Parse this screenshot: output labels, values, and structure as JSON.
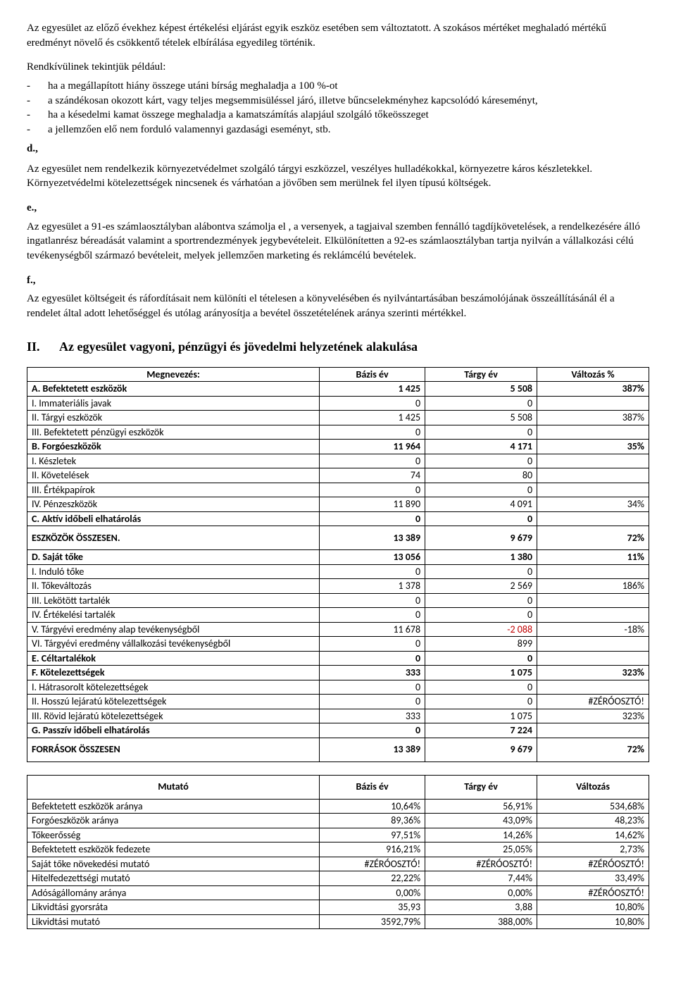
{
  "intro": {
    "p1": "Az egyesület az előző évekhez képest értékelési eljárást egyik eszköz esetében sem változtatott. A szokásos mértéket meghaladó mértékű eredményt növelő és csökkentő tételek elbírálása egyedileg történik.",
    "p2": "Rendkívülinek tekintjük például:",
    "bullets": [
      "ha a megállapított hiány összege utáni bírság meghaladja a 100 %-ot",
      "a szándékosan okozott kárt, vagy teljes megsemmisüléssel járó, illetve bűncselekményhez kapcsolódó káreseményt,",
      "ha a késedelmi kamat összege meghaladja a kamatszámítás alapjául szolgáló tőkeösszeget",
      "a jellemzően elő nem forduló valamennyi gazdasági eseményt, stb."
    ]
  },
  "d": {
    "label": "d.,",
    "p1": "Az egyesület nem rendelkezik környezetvédelmet szolgáló tárgyi eszközzel, veszélyes hulladékokkal, környezetre káros készletekkel. Környezetvédelmi kötelezettségek nincsenek és várhatóan a jövőben sem merülnek fel ilyen típusú költségek."
  },
  "e": {
    "label": "e.,",
    "p1": "Az egyesület a 91-es számlaosztályban alábontva számolja el , a versenyek,  a tagjaival szemben fennálló tagdíjkövetelések, a rendelkezésére álló ingatlanrész béreadását valamint a sportrendezmények jegybevételeit. Elkülönítetten a 92-es számlaosztályban tartja nyilván a vállalkozási célú tevékenységből származó bevételeit, melyek jellemzően marketing és reklámcélú bevételek."
  },
  "f": {
    "label": "f.,",
    "p1": "Az egyesület költségeit és ráfordításait nem különíti el tételesen a könyvelésében és nyilvántartásában beszámolójának összeállításánál  él a rendelet által adott lehetőséggel és utólag arányosítja a bevétel összetételének aránya szerinti mértékkel."
  },
  "section2": {
    "roman": "II.",
    "title": "Az egyesület vagyoni, pénzügyi és jövedelmi helyzetének alakulása"
  },
  "table1": {
    "headers": [
      "Megnevezés:",
      "Bázis év",
      "Tárgy év",
      "Változás %"
    ],
    "rows": [
      {
        "name": "A. Befektetett eszközök",
        "b": "1 425",
        "t": "5 508",
        "v": "387%",
        "bold": true
      },
      {
        "name": "I. Immateriális javak",
        "b": "0",
        "t": "0",
        "v": ""
      },
      {
        "name": "II. Tárgyi eszközök",
        "b": "1 425",
        "t": "5 508",
        "v": "387%"
      },
      {
        "name": "III. Befektetett pénzügyi eszközök",
        "b": "0",
        "t": "0",
        "v": ""
      },
      {
        "name": "B. Forgóeszközök",
        "b": "11 964",
        "t": "4 171",
        "v": "35%",
        "bold": true
      },
      {
        "name": "I. Készletek",
        "b": "0",
        "t": "0",
        "v": ""
      },
      {
        "name": "II. Követelések",
        "b": "74",
        "t": "80",
        "v": ""
      },
      {
        "name": "III. Értékpapírok",
        "b": "0",
        "t": "0",
        "v": ""
      },
      {
        "name": "IV. Pénzeszközök",
        "b": "11 890",
        "t": "4 091",
        "v": "34%"
      },
      {
        "name": "C. Aktív időbeli elhatárolás",
        "b": "0",
        "t": "0",
        "v": "",
        "bold": true
      },
      {
        "name": "ESZKÖZÖK ÖSSZESEN.",
        "b": "13 389",
        "t": "9 679",
        "v": "72%",
        "bold": true,
        "tall": true
      },
      {
        "name": "D. Saját tőke",
        "b": "13 056",
        "t": "1 380",
        "v": "11%",
        "bold": true
      },
      {
        "name": "I. Induló tőke",
        "b": "0",
        "t": "0",
        "v": ""
      },
      {
        "name": "II. Tőkeváltozás",
        "b": "1 378",
        "t": "2 569",
        "v": "186%"
      },
      {
        "name": "III. Lekötött tartalék",
        "b": "0",
        "t": "0",
        "v": ""
      },
      {
        "name": "IV. Értékelési tartalék",
        "b": "0",
        "t": "0",
        "v": ""
      },
      {
        "name": "V. Tárgyévi eredmény alap tevékenységből",
        "b": "11 678",
        "t": "-2 088",
        "v": "-18%",
        "tneg": true
      },
      {
        "name": "VI. Tárgyévi eredmény vállalkozási tevékenységből",
        "b": "0",
        "t": "899",
        "v": ""
      },
      {
        "name": "E. Céltartalékok",
        "b": "0",
        "t": "0",
        "v": "",
        "bold": true
      },
      {
        "name": "F. Kötelezettségek",
        "b": "333",
        "t": "1 075",
        "v": "323%",
        "bold": true
      },
      {
        "name": "I. Hátrasorolt kötelezettségek",
        "b": "0",
        "t": "0",
        "v": ""
      },
      {
        "name": "II. Hosszú lejáratú kötelezettségek",
        "b": "0",
        "t": "0",
        "v": "#ZÉRÓOSZTÓ!"
      },
      {
        "name": "III. Rövid lejáratú kötelezettségek",
        "b": "333",
        "t": "1 075",
        "v": "323%"
      },
      {
        "name": "G. Passzív időbeli elhatárolás",
        "b": "0",
        "t": "7 224",
        "v": "",
        "bold": true
      },
      {
        "name": "FORRÁSOK ÖSSZESEN",
        "b": "13 389",
        "t": "9 679",
        "v": "72%",
        "bold": true,
        "tall": true
      }
    ]
  },
  "table2": {
    "headers": [
      "Mutató",
      "Bázis év",
      "Tárgy év",
      "Változás"
    ],
    "rows": [
      {
        "name": "Befektetett eszközök aránya",
        "b": "10,64%",
        "t": "56,91%",
        "v": "534,68%"
      },
      {
        "name": "Forgóeszközök aránya",
        "b": "89,36%",
        "t": "43,09%",
        "v": "48,23%"
      },
      {
        "name": "Tőkeerősség",
        "b": "97,51%",
        "t": "14,26%",
        "v": "14,62%"
      },
      {
        "name": "Befektetett eszközök fedezete",
        "b": "916,21%",
        "t": "25,05%",
        "v": "2,73%"
      },
      {
        "name": "Saját tőke növekedési mutató",
        "b": "#ZÉRÓOSZTÓ!",
        "t": "#ZÉRÓOSZTÓ!",
        "v": "#ZÉRÓOSZTÓ!"
      },
      {
        "name": "Hitelfedezettségi mutató",
        "b": "22,22%",
        "t": "7,44%",
        "v": "33,49%"
      },
      {
        "name": "Adóságállomány aránya",
        "b": "0,00%",
        "t": "0,00%",
        "v": "#ZÉRÓOSZTÓ!"
      },
      {
        "name": "Likvidtási gyorsráta",
        "b": "35,93",
        "t": "3,88",
        "v": "10,80%"
      },
      {
        "name": "Likvidtási mutató",
        "b": "3592,79%",
        "t": "388,00%",
        "v": "10,80%"
      }
    ]
  },
  "colwidths": {
    "c1": "47%",
    "c2": "17%",
    "c3": "18%",
    "c4": "18%"
  }
}
